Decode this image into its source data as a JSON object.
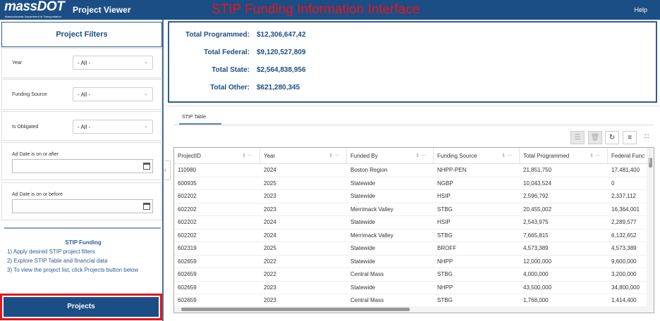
{
  "header": {
    "logo": "massDOT",
    "logo_sub": "Massachusetts Department of Transportation",
    "app_title": "Project Viewer",
    "overlay_title": "STIP Funding Information Interface",
    "help": "Help"
  },
  "filters": {
    "title": "Project Filters",
    "year": {
      "label": "Year",
      "value": "- All -"
    },
    "funding_source": {
      "label": "Funding Source",
      "value": "- All -"
    },
    "is_obligated": {
      "label": "Is Obligated",
      "value": "- All -"
    },
    "ad_after": {
      "label": "Ad Date is on or after",
      "value": ""
    },
    "ad_before": {
      "label": "Ad Date is on or before",
      "value": ""
    }
  },
  "info": {
    "title": "STIP Funding",
    "lines": [
      "1) Apply desired STIP project filters",
      "2) Explore STIP Table and financial data",
      "3) To view the project list, click Projects button below"
    ]
  },
  "projects_button": "Projects",
  "summary": [
    {
      "label": "Total Programmed:",
      "value": "$12,306,647,42"
    },
    {
      "label": "Total Federal:",
      "value": "$9,120,527,809"
    },
    {
      "label": "Total State:",
      "value": "$2,564,838,956"
    },
    {
      "label": "Total Other:",
      "value": "$621,280,345"
    }
  ],
  "tab": "STIP Table",
  "table": {
    "columns": [
      "ProjectID",
      "Year",
      "Funded By",
      "Funding Source",
      "Total Programmed",
      "Federal Func"
    ],
    "rows": [
      [
        "110980",
        "2024",
        "Boston Region",
        "NHPP-PEN",
        "21,851,750",
        "17,481,400"
      ],
      [
        "600935",
        "2025",
        "Statewide",
        "NGBP",
        "10,043,524",
        "0"
      ],
      [
        "602202",
        "2023",
        "Statewide",
        "HSIP",
        "2,596,792",
        "2,337,112"
      ],
      [
        "602202",
        "2023",
        "Merrimack Valley",
        "STBG",
        "20,455,002",
        "16,364,001"
      ],
      [
        "602202",
        "2024",
        "Statewide",
        "HSIP",
        "2,543,975",
        "2,289,577"
      ],
      [
        "602202",
        "2024",
        "Merrimack Valley",
        "STBG",
        "7,665,815",
        "6,132,652"
      ],
      [
        "602319",
        "2025",
        "Statewide",
        "BROFF",
        "4,573,389",
        "4,573,389"
      ],
      [
        "602659",
        "2022",
        "Statewide",
        "NHPP",
        "12,000,000",
        "9,600,000"
      ],
      [
        "602659",
        "2022",
        "Central Mass",
        "STBG",
        "4,000,000",
        "3,200,000"
      ],
      [
        "602659",
        "2023",
        "Statewide",
        "NHPP",
        "43,500,000",
        "34,800,000"
      ],
      [
        "602659",
        "2023",
        "Central Mass",
        "STBG",
        "1,768,000",
        "1,414,400"
      ]
    ]
  }
}
